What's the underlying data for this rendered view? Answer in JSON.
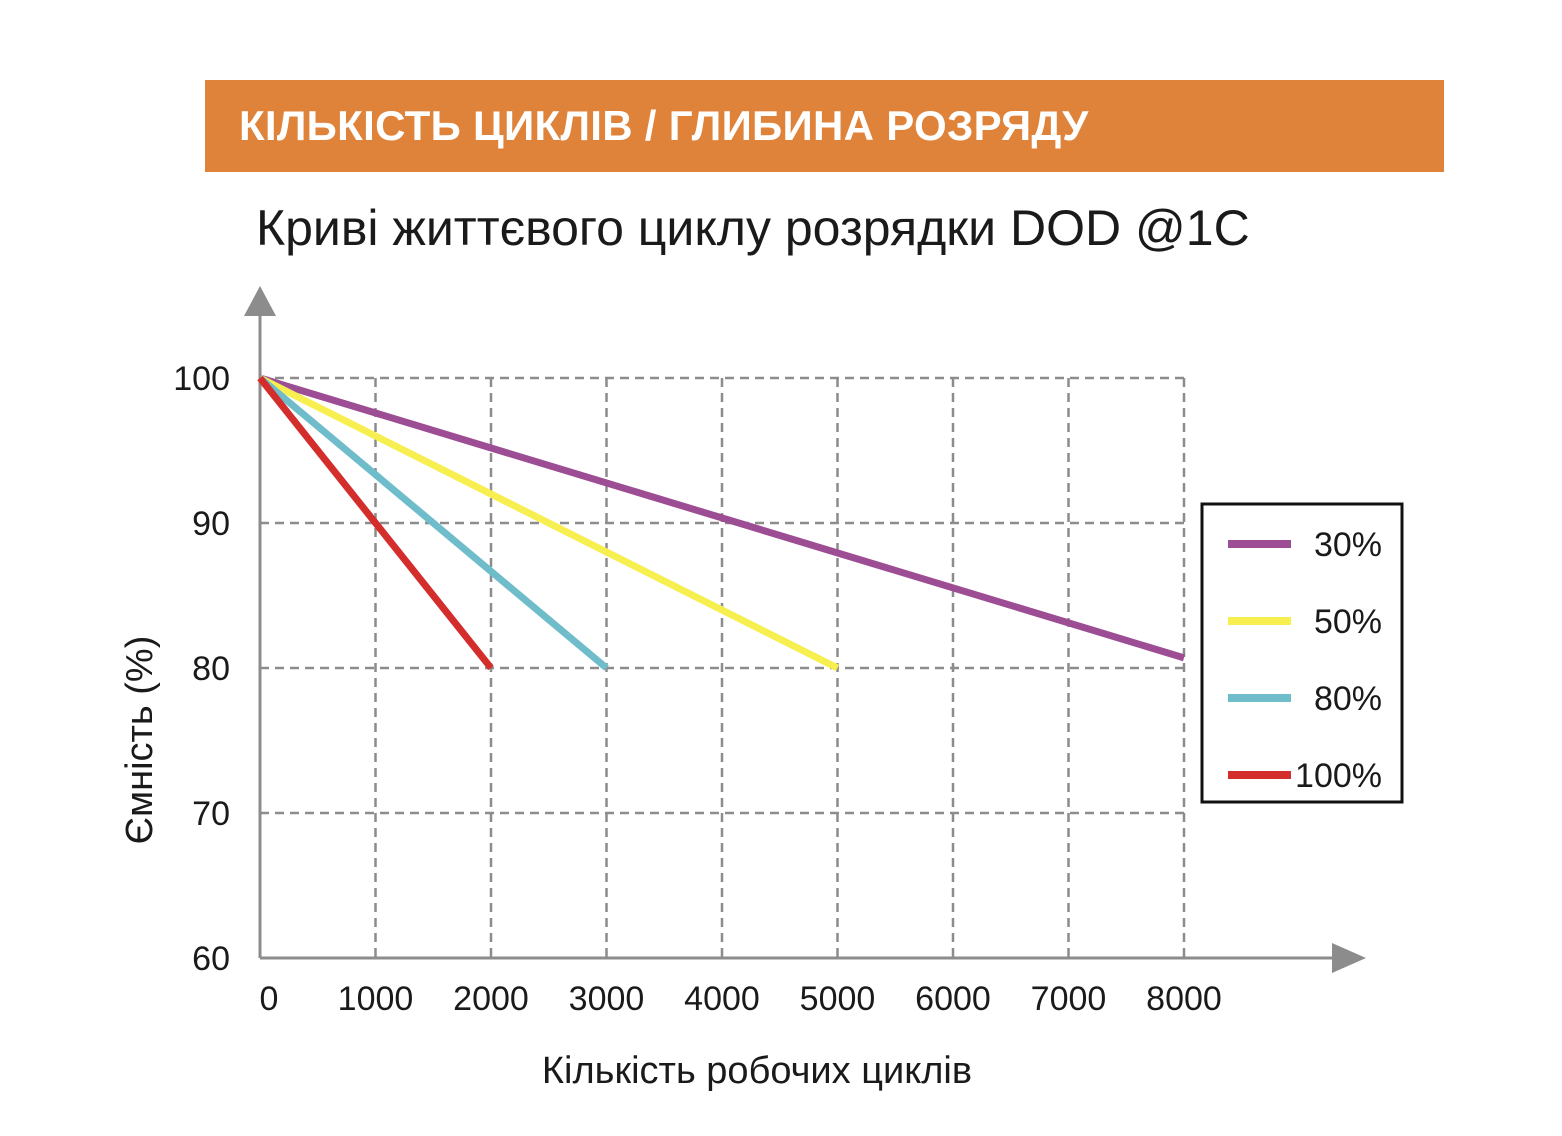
{
  "banner": {
    "title": "КІЛЬКІСТЬ ЦИКЛІВ / ГЛИБИНА РОЗРЯДУ"
  },
  "colors": {
    "banner": "#e0833a",
    "grid": "#8c8c8c",
    "axis": "#8c8c8c"
  },
  "chart_data": {
    "type": "line",
    "title": "Криві життєвого циклу розрядки DOD @1C",
    "xlabel": "Кількість робочих циклів",
    "ylabel": "Ємність (%)",
    "xlim": [
      0,
      8000
    ],
    "ylim": [
      60,
      100
    ],
    "xticks": [
      "0",
      "1000",
      "2000",
      "3000",
      "4000",
      "5000",
      "6000",
      "7000",
      "8000"
    ],
    "yticks": [
      "60",
      "70",
      "80",
      "90",
      "100"
    ],
    "grid": "dashed",
    "legend_position": "right",
    "series": [
      {
        "name": "30%",
        "color": "#9c4d94",
        "x": [
          0,
          8000
        ],
        "y": [
          100,
          80.7
        ]
      },
      {
        "name": "50%",
        "color": "#f7ee4f",
        "x": [
          0,
          5000
        ],
        "y": [
          100,
          80
        ]
      },
      {
        "name": "80%",
        "color": "#6fbccb",
        "x": [
          0,
          3000
        ],
        "y": [
          100,
          80
        ]
      },
      {
        "name": "100%",
        "color": "#d42e2c",
        "x": [
          0,
          2000
        ],
        "y": [
          100,
          80
        ]
      }
    ]
  }
}
